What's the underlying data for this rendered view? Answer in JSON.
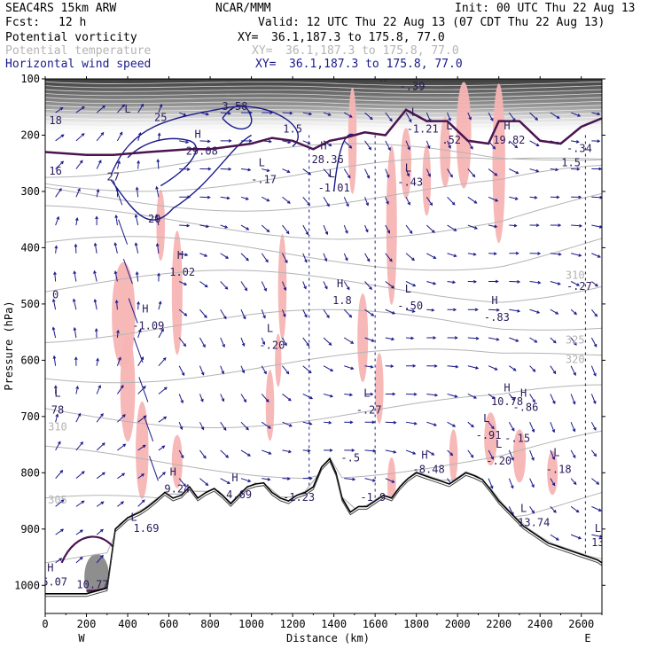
{
  "header": {
    "model": "SEAC4RS 15km ARW",
    "center": "NCAR/MMM",
    "init": "Init: 00 UTC Thu 22 Aug 13",
    "fcst_label": "Fcst:",
    "fcst_value": "12 h",
    "valid": "Valid: 12 UTC Thu 22 Aug 13 (07 CDT Thu 22 Aug 13)"
  },
  "fields": [
    {
      "name": "Potential vorticity",
      "xy_label": "XY=",
      "xy": "36.1,187.3 to 175.8, 77.0",
      "color": "#000000"
    },
    {
      "name": "Potential temperature",
      "xy_label": "XY=",
      "xy": "36.1,187.3 to 175.8, 77.0",
      "color": "#b4b4b4"
    },
    {
      "name": "Horizontal wind speed",
      "xy_label": "XY=",
      "xy": "36.1,187.3 to 175.8, 77.0",
      "color": "#1a1a8c"
    }
  ],
  "colors": {
    "theta": "#b4b4b4",
    "wind": "#1a1a8c",
    "pv_contour": "#4b1450",
    "pink_shading": "#f7b4b4",
    "terrain_line": "#000000"
  },
  "chart_data": {
    "type": "cross-section",
    "xlabel": "Distance (km)",
    "ylabel": "Pressure (hPa)",
    "xlim": [
      0,
      2700
    ],
    "ylim": [
      1050,
      100
    ],
    "x_ticks": [
      "0",
      "200",
      "400",
      "600",
      "800",
      "1000",
      "1200",
      "1400",
      "1600",
      "1800",
      "2000",
      "2200",
      "2400",
      "2600"
    ],
    "y_ticks": [
      "100",
      "200",
      "300",
      "400",
      "500",
      "600",
      "700",
      "800",
      "900",
      "1000"
    ],
    "x_ends": {
      "left": "W",
      "right": "E"
    },
    "terrain": [
      [
        0,
        1015
      ],
      [
        200,
        1015
      ],
      [
        300,
        1005
      ],
      [
        340,
        900
      ],
      [
        370,
        890
      ],
      [
        400,
        880
      ],
      [
        430,
        875
      ],
      [
        460,
        870
      ],
      [
        500,
        860
      ],
      [
        540,
        848
      ],
      [
        580,
        835
      ],
      [
        620,
        845
      ],
      [
        660,
        840
      ],
      [
        700,
        825
      ],
      [
        740,
        845
      ],
      [
        780,
        835
      ],
      [
        820,
        828
      ],
      [
        860,
        840
      ],
      [
        900,
        855
      ],
      [
        940,
        840
      ],
      [
        980,
        825
      ],
      [
        1020,
        820
      ],
      [
        1060,
        818
      ],
      [
        1100,
        835
      ],
      [
        1140,
        845
      ],
      [
        1180,
        850
      ],
      [
        1220,
        840
      ],
      [
        1260,
        835
      ],
      [
        1300,
        825
      ],
      [
        1340,
        790
      ],
      [
        1380,
        775
      ],
      [
        1410,
        800
      ],
      [
        1440,
        845
      ],
      [
        1480,
        870
      ],
      [
        1520,
        860
      ],
      [
        1560,
        860
      ],
      [
        1600,
        850
      ],
      [
        1640,
        840
      ],
      [
        1680,
        845
      ],
      [
        1720,
        825
      ],
      [
        1760,
        810
      ],
      [
        1800,
        800
      ],
      [
        1840,
        805
      ],
      [
        1880,
        810
      ],
      [
        1920,
        815
      ],
      [
        1960,
        820
      ],
      [
        2000,
        810
      ],
      [
        2040,
        800
      ],
      [
        2080,
        805
      ],
      [
        2120,
        812
      ],
      [
        2160,
        830
      ],
      [
        2200,
        850
      ],
      [
        2240,
        865
      ],
      [
        2280,
        880
      ],
      [
        2320,
        895
      ],
      [
        2360,
        905
      ],
      [
        2400,
        915
      ],
      [
        2440,
        925
      ],
      [
        2480,
        930
      ],
      [
        2520,
        935
      ],
      [
        2560,
        940
      ],
      [
        2600,
        945
      ],
      [
        2640,
        950
      ],
      [
        2680,
        955
      ],
      [
        2700,
        960
      ]
    ],
    "theta_levels": [
      {
        "label": "305",
        "x": 60,
        "p": 855
      },
      {
        "label": "310",
        "x": 60,
        "p": 725
      },
      {
        "label": "310",
        "x": 2570,
        "p": 455
      },
      {
        "label": "320",
        "x": 2570,
        "p": 605
      },
      {
        "label": "325",
        "x": 2570,
        "p": 570
      }
    ],
    "pv_labels": [
      {
        "label": "16",
        "x": 50,
        "p": 270
      },
      {
        "label": "0",
        "x": 50,
        "p": 490
      },
      {
        "label": "18",
        "x": 50,
        "p": 180
      },
      {
        "label": "1.5",
        "x": 1200,
        "p": 195
      },
      {
        "label": "1.5",
        "x": 2550,
        "p": 255
      },
      {
        "label": "-.34",
        "x": 2590,
        "p": 230
      },
      {
        "label": "-.27",
        "x": 2590,
        "p": 475
      },
      {
        "label": "3.58",
        "x": 920,
        "p": 155
      },
      {
        "label": "-.39",
        "x": 1780,
        "p": 120
      },
      {
        "label": "L",
        "x": 1790,
        "p": 165
      },
      {
        "label": "-1.21",
        "x": 1830,
        "p": 195
      },
      {
        "label": "L",
        "x": 1960,
        "p": 190
      },
      {
        "label": ".52",
        "x": 1970,
        "p": 215
      },
      {
        "label": "H",
        "x": 2240,
        "p": 190
      },
      {
        "label": "19.82",
        "x": 2250,
        "p": 215
      },
      {
        "label": "H",
        "x": 740,
        "p": 205
      },
      {
        "label": "29.08",
        "x": 760,
        "p": 235
      },
      {
        "label": "H",
        "x": 1350,
        "p": 225
      },
      {
        "label": "28.36",
        "x": 1370,
        "p": 250
      },
      {
        "label": "L",
        "x": 1050,
        "p": 255
      },
      {
        "label": "-.17",
        "x": 1060,
        "p": 285
      },
      {
        "label": "L",
        "x": 1390,
        "p": 275
      },
      {
        "label": "-1.01",
        "x": 1400,
        "p": 300
      },
      {
        "label": "L",
        "x": 1760,
        "p": 265
      },
      {
        "label": "-.43",
        "x": 1770,
        "p": 290
      },
      {
        "label": "H",
        "x": 655,
        "p": 420
      },
      {
        "label": "1.02",
        "x": 665,
        "p": 450
      },
      {
        "label": "H",
        "x": 1430,
        "p": 470
      },
      {
        "label": "1.8",
        "x": 1440,
        "p": 500
      },
      {
        "label": "L",
        "x": 1760,
        "p": 480
      },
      {
        "label": "-.50",
        "x": 1770,
        "p": 510
      },
      {
        "label": "H",
        "x": 2180,
        "p": 500
      },
      {
        "label": "-.83",
        "x": 2190,
        "p": 530
      },
      {
        "label": "H",
        "x": 485,
        "p": 515
      },
      {
        "label": "-1.09",
        "x": 500,
        "p": 545
      },
      {
        "label": "L",
        "x": 1090,
        "p": 550
      },
      {
        "label": "-.20",
        "x": 1100,
        "p": 580
      },
      {
        "label": "L",
        "x": 60,
        "p": 665
      },
      {
        "label": "78",
        "x": 60,
        "p": 695
      },
      {
        "label": "H",
        "x": 2240,
        "p": 655
      },
      {
        "label": "10.78",
        "x": 2240,
        "p": 680
      },
      {
        "label": "H",
        "x": 2320,
        "p": 665
      },
      {
        "label": "-.86",
        "x": 2330,
        "p": 690
      },
      {
        "label": "L",
        "x": 1560,
        "p": 665
      },
      {
        "label": "-.27",
        "x": 1570,
        "p": 695
      },
      {
        "label": "L",
        "x": 2140,
        "p": 710
      },
      {
        "label": "-.91",
        "x": 2150,
        "p": 740
      },
      {
        "label": "-.15",
        "x": 2290,
        "p": 745
      },
      {
        "label": "L",
        "x": 2200,
        "p": 755
      },
      {
        "label": "-.20",
        "x": 2200,
        "p": 785
      },
      {
        "label": "L",
        "x": 2480,
        "p": 770
      },
      {
        "label": "-.18",
        "x": 2490,
        "p": 800
      },
      {
        "label": "H",
        "x": 1840,
        "p": 775
      },
      {
        "label": "-8.48",
        "x": 1860,
        "p": 800
      },
      {
        "label": "-.5",
        "x": 1480,
        "p": 780
      },
      {
        "label": "H",
        "x": 620,
        "p": 805
      },
      {
        "label": "9.24",
        "x": 640,
        "p": 835
      },
      {
        "label": "H",
        "x": 920,
        "p": 815
      },
      {
        "label": "4.69",
        "x": 940,
        "p": 845
      },
      {
        "label": "-1.23",
        "x": 1230,
        "p": 850
      },
      {
        "label": "-1.9",
        "x": 1590,
        "p": 850
      },
      {
        "label": "L",
        "x": 430,
        "p": 885
      },
      {
        "label": "1.69",
        "x": 490,
        "p": 905
      },
      {
        "label": "L",
        "x": 2320,
        "p": 870
      },
      {
        "label": "13.74",
        "x": 2370,
        "p": 895
      },
      {
        "label": "L",
        "x": 2680,
        "p": 905
      },
      {
        "label": "13",
        "x": 2680,
        "p": 930
      },
      {
        "label": "H",
        "x": 25,
        "p": 975
      },
      {
        "label": "16.07",
        "x": 30,
        "p": 1000
      },
      {
        "label": "10.77",
        "x": 230,
        "p": 1005
      },
      {
        "label": "27",
        "x": 330,
        "p": 280
      },
      {
        "label": "20",
        "x": 530,
        "p": 355
      },
      {
        "label": "25",
        "x": 560,
        "p": 175
      },
      {
        "label": "L",
        "x": 400,
        "p": 160
      },
      {
        "label": "H",
        "x": 1640,
        "p": 105
      }
    ]
  }
}
